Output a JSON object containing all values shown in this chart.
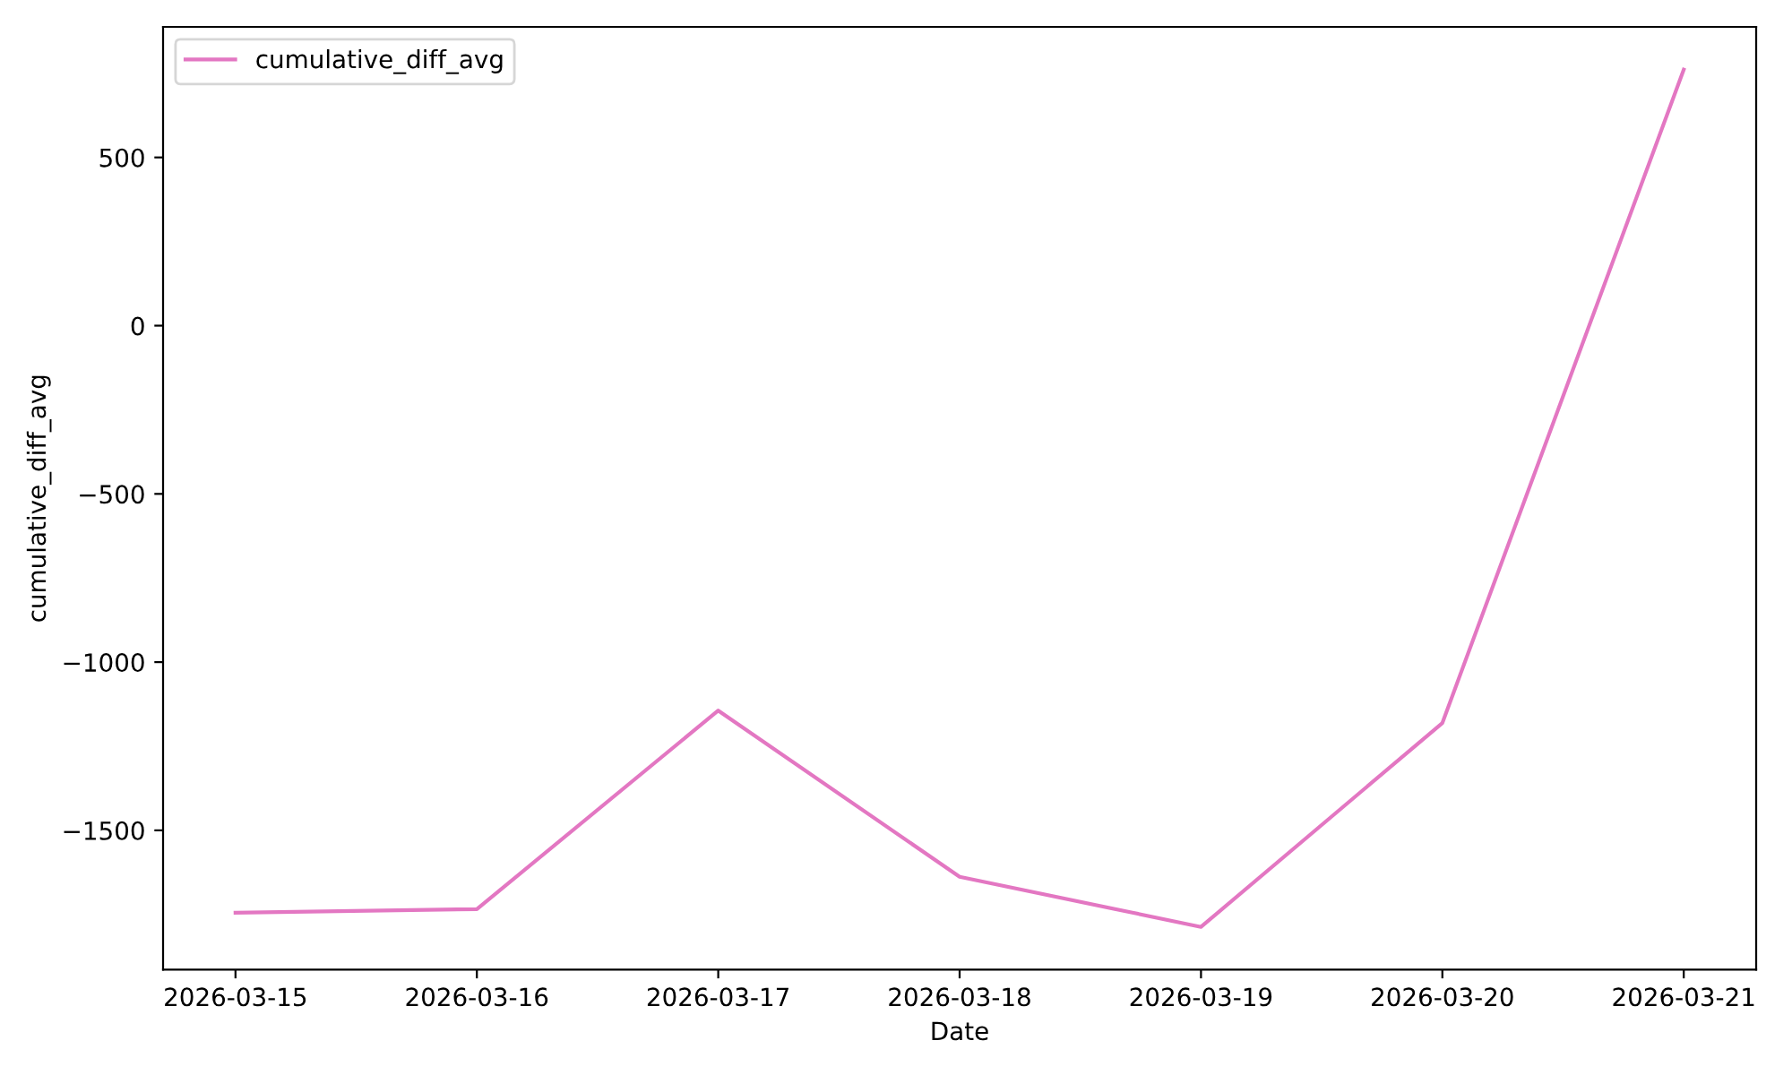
{
  "chart_data": {
    "type": "line",
    "xlabel": "Date",
    "ylabel": "cumulative_diff_avg",
    "x": [
      "2026-03-15",
      "2026-03-16",
      "2026-03-17",
      "2026-03-18",
      "2026-03-19",
      "2026-03-20",
      "2026-03-21"
    ],
    "series": [
      {
        "name": "cumulative_diff_avg",
        "color": "#e377c2",
        "values": [
          -1745,
          -1734,
          -1144,
          -1638,
          -1787,
          -1181,
          761
        ]
      }
    ],
    "xlim": [
      "2026-03-14T16:48",
      "2026-03-21T07:12"
    ],
    "xticks": [
      "2026-03-15",
      "2026-03-16",
      "2026-03-17",
      "2026-03-18",
      "2026-03-19",
      "2026-03-20",
      "2026-03-21"
    ],
    "ylim": [
      -1914,
      888
    ],
    "yticks": [
      -1500,
      -1000,
      -500,
      0,
      500
    ],
    "grid": false,
    "legend": "top left",
    "marker": "none",
    "line_style": "solid"
  }
}
